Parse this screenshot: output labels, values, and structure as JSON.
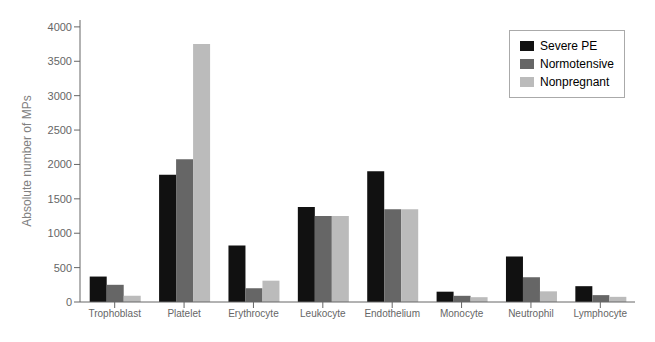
{
  "chart_data": {
    "type": "bar",
    "categories": [
      "Trophoblast",
      "Platelet",
      "Erythrocyte",
      "Leukocyte",
      "Endothelium",
      "Monocyte",
      "Neutrophil",
      "Lymphocyte"
    ],
    "series": [
      {
        "name": "Severe PE",
        "color": "#111111",
        "values": [
          370,
          1850,
          820,
          1380,
          1900,
          150,
          660,
          230
        ]
      },
      {
        "name": "Normotensive",
        "color": "#666666",
        "values": [
          250,
          2075,
          200,
          1250,
          1350,
          90,
          360,
          100
        ]
      },
      {
        "name": "Nonpregnant",
        "color": "#bbbbbb",
        "values": [
          90,
          3750,
          310,
          1250,
          1350,
          70,
          155,
          75
        ]
      }
    ],
    "ylabel": "Absolute number of MPs",
    "ylim": [
      0,
      4100
    ],
    "yticks": [
      0,
      500,
      1000,
      1500,
      2000,
      2500,
      3000,
      3500,
      4000
    ],
    "grid": false,
    "legend": "upper right"
  }
}
